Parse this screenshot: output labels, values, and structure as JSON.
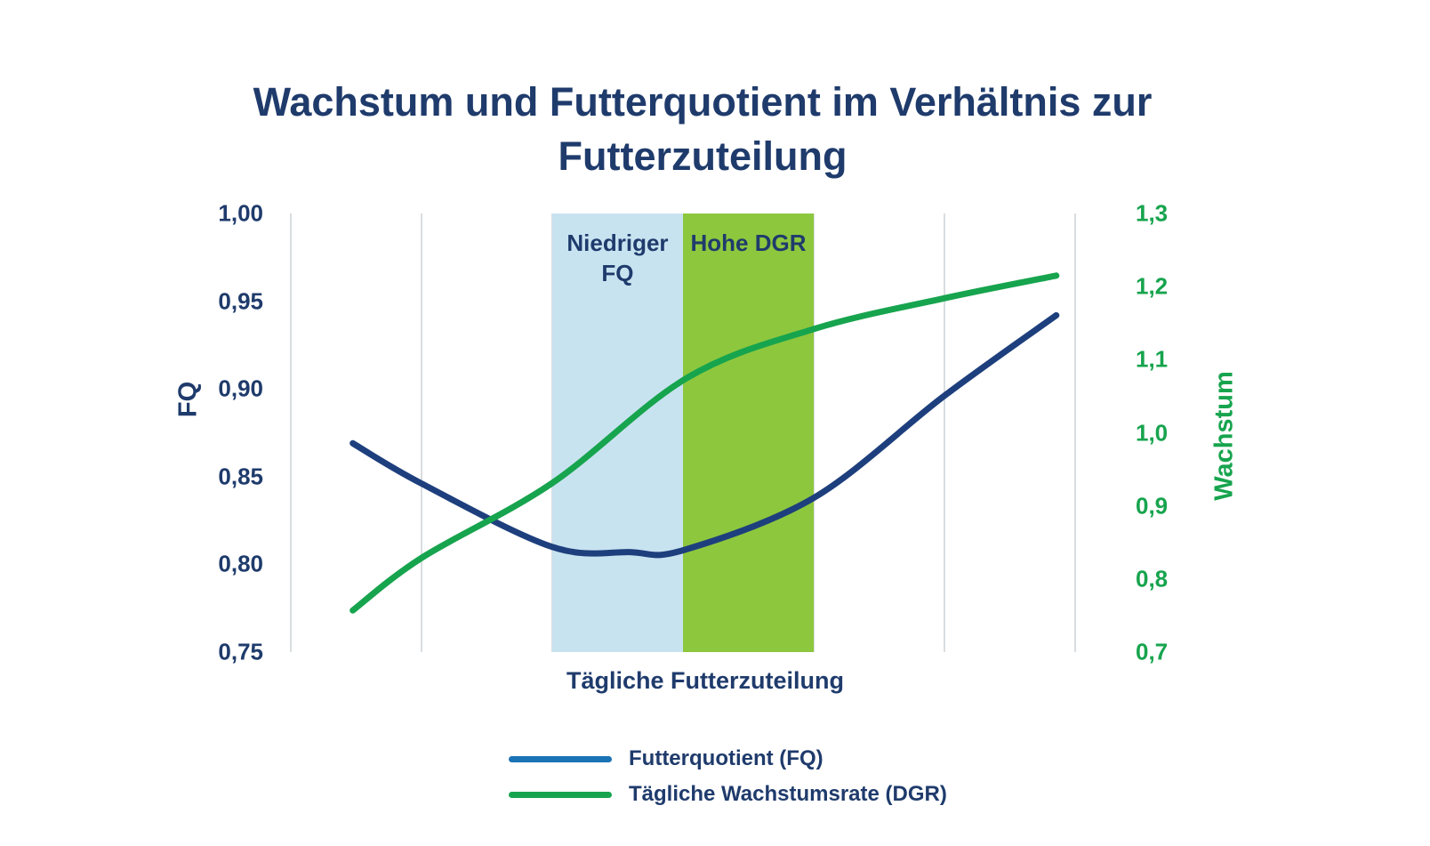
{
  "title": "Wachstum und Futterquotient im Verhältnis zur Futterzuteilung",
  "colors": {
    "text_navy": "#1f3b6c",
    "curve_navy": "#1e3f7d",
    "curve_green": "#17a44e",
    "region_blue": "#c8e3f0",
    "region_green": "#8dc73e",
    "legend_blue": "#1a73b4",
    "gridline": "#d8dde0"
  },
  "chart_data": {
    "type": "line",
    "title": "Wachstum und Futterquotient im Verhältnis zur Futterzuteilung",
    "xlabel": "Tägliche Futterzuteilung",
    "x_axis": {
      "ticks": [],
      "note": "no numeric x ticks shown; x given as 0-1 fraction of axis"
    },
    "left_axis": {
      "label": "FQ",
      "min": 0.75,
      "max": 1.0,
      "ticks": [
        "1,00",
        "0,95",
        "0,90",
        "0,85",
        "0,80",
        "0,75"
      ],
      "color": "#1f3b6c"
    },
    "right_axis": {
      "label": "Wachstum",
      "min": 0.7,
      "max": 1.3,
      "ticks": [
        "1,3",
        "1,2",
        "1,1",
        "1,0",
        "0,9",
        "0,8",
        "0,7"
      ],
      "color": "#17a44e"
    },
    "gridlines": {
      "vertical_count": 7,
      "horizontal": false,
      "color": "#d8dde0"
    },
    "regions": [
      {
        "label": "Niedriger FQ",
        "x_from": 0.3333,
        "x_to": 0.5,
        "color": "#c8e3f0"
      },
      {
        "label": "Hohe DGR",
        "x_from": 0.5,
        "x_to": 0.6667,
        "color": "#8dc73e"
      }
    ],
    "series": [
      {
        "name": "Futterquotient (FQ)",
        "axis": "left",
        "color": "#1e3f7d",
        "points": [
          {
            "x": 0.079,
            "y": 0.869
          },
          {
            "x": 0.167,
            "y": 0.846
          },
          {
            "x": 0.333,
            "y": 0.81
          },
          {
            "x": 0.432,
            "y": 0.807
          },
          {
            "x": 0.5,
            "y": 0.808
          },
          {
            "x": 0.667,
            "y": 0.838
          },
          {
            "x": 0.833,
            "y": 0.896
          },
          {
            "x": 0.976,
            "y": 0.942
          }
        ]
      },
      {
        "name": "Tägliche Wachstumsrate (DGR)",
        "axis": "right",
        "color": "#17a44e",
        "points": [
          {
            "x": 0.079,
            "y": 0.757
          },
          {
            "x": 0.167,
            "y": 0.829
          },
          {
            "x": 0.333,
            "y": 0.931
          },
          {
            "x": 0.505,
            "y": 1.075
          },
          {
            "x": 0.667,
            "y": 1.142
          },
          {
            "x": 0.833,
            "y": 1.184
          },
          {
            "x": 0.976,
            "y": 1.215
          }
        ]
      }
    ],
    "legend": {
      "position": "bottom",
      "entries": [
        {
          "label": "Futterquotient (FQ)",
          "color": "#1a73b4"
        },
        {
          "label": "Tägliche Wachstumsrate (DGR)",
          "color": "#17a44e"
        }
      ]
    }
  }
}
